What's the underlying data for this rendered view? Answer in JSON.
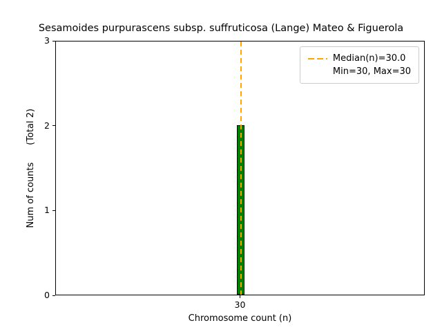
{
  "chart_data": {
    "type": "bar",
    "title": "Sesamoides purpurascens subsp. suffruticosa (Lange) Mateo & Figuerola",
    "xlabel": "Chromosome count (n)",
    "ylabel": "Num of counts      (Total 2)",
    "categories": [
      30
    ],
    "values": [
      2
    ],
    "total_counts": 2,
    "ylim": [
      0,
      3
    ],
    "yticks": [
      0,
      1,
      2,
      3
    ],
    "xticks": [
      "30"
    ],
    "median_value": 30.0,
    "min_value": 30,
    "max_value": 30,
    "bar_color": "#008000",
    "bar_edge_color": "#000000",
    "median_line_color": "#ffa500",
    "grid": "off",
    "legend": {
      "position": "upper right",
      "entries": [
        "Median(n)=30.0",
        "Min=30, Max=30"
      ]
    }
  }
}
